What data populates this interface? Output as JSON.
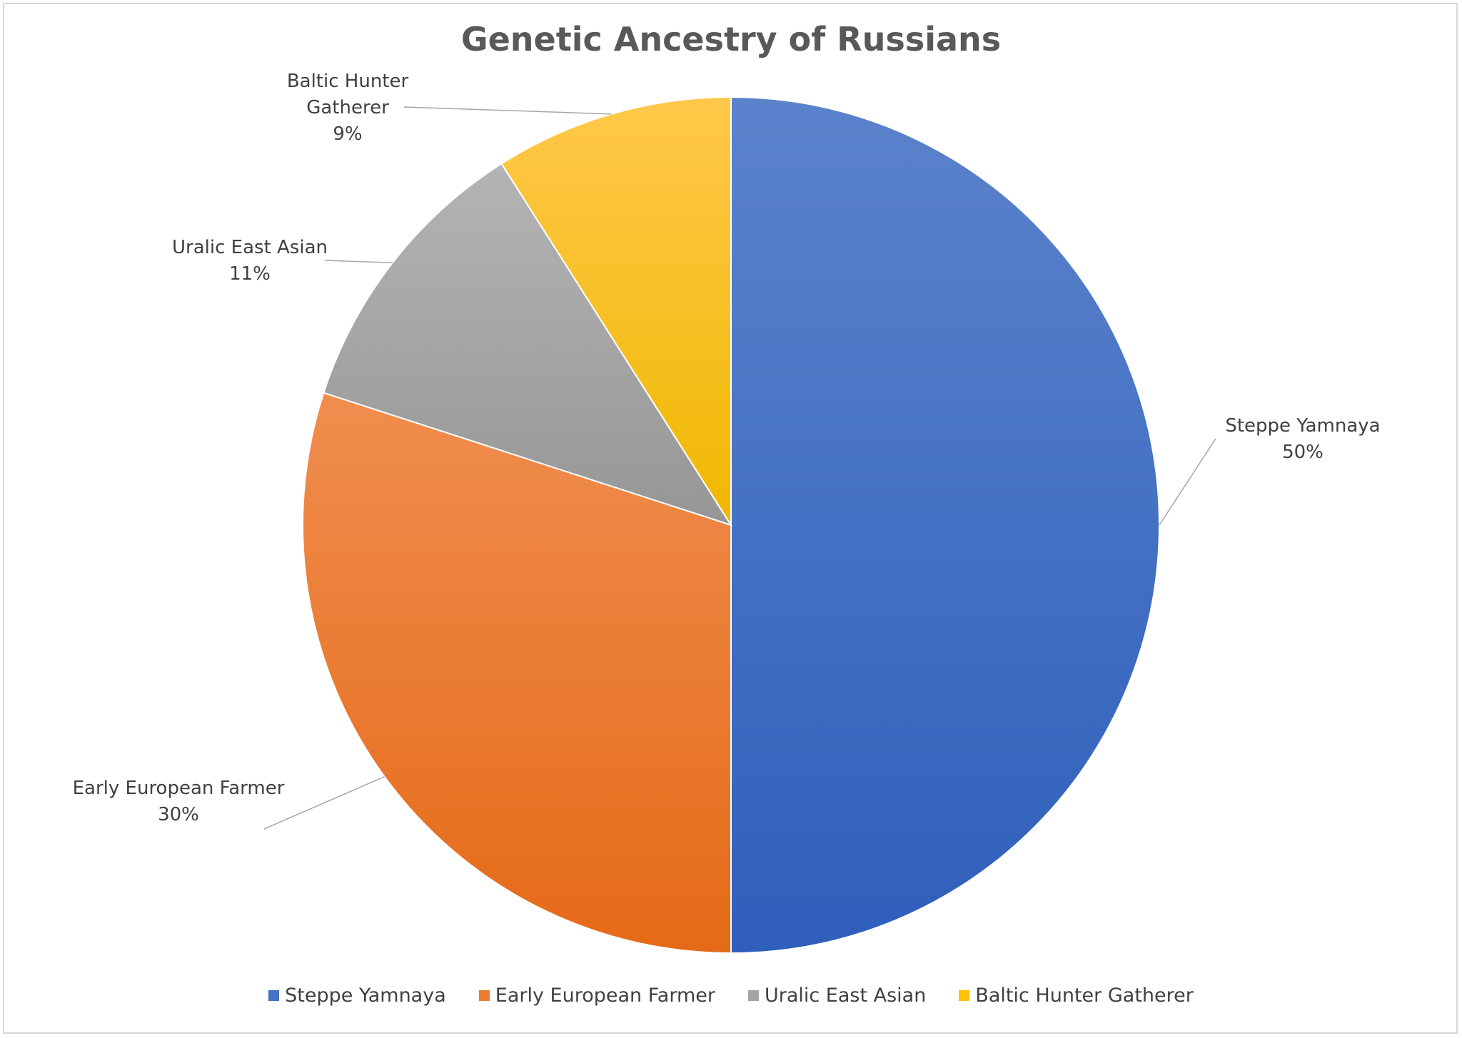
{
  "chart_data": {
    "type": "pie",
    "title": "Genetic Ancestry of Russians",
    "slices": [
      {
        "label": "Steppe Yamnaya",
        "value": 50,
        "label_text": "50%",
        "color": "#4472c4",
        "dark": "#2f5fbb",
        "light": "#5b83cc",
        "label_lines": [
          "Steppe Yamnaya",
          "50%"
        ]
      },
      {
        "label": "Early European Farmer",
        "value": 30,
        "label_text": "30%",
        "color": "#ed7d31",
        "dark": "#e56a17",
        "light": "#f08d4f",
        "label_lines": [
          "Early European Farmer",
          "30%"
        ]
      },
      {
        "label": "Uralic East Asian",
        "value": 11,
        "label_text": "11%",
        "color": "#a5a5a5",
        "dark": "#969696",
        "light": "#b4b4b4",
        "label_lines": [
          "Uralic East Asian",
          "11%"
        ]
      },
      {
        "label": "Baltic Hunter Gatherer",
        "value": 9,
        "label_text": "9%",
        "color": "#ffc000",
        "dark": "#f0b800",
        "light": "#ffc84a",
        "label_lines": [
          "Baltic Hunter",
          "Gatherer",
          "9%"
        ]
      }
    ],
    "legend_position": "bottom"
  }
}
